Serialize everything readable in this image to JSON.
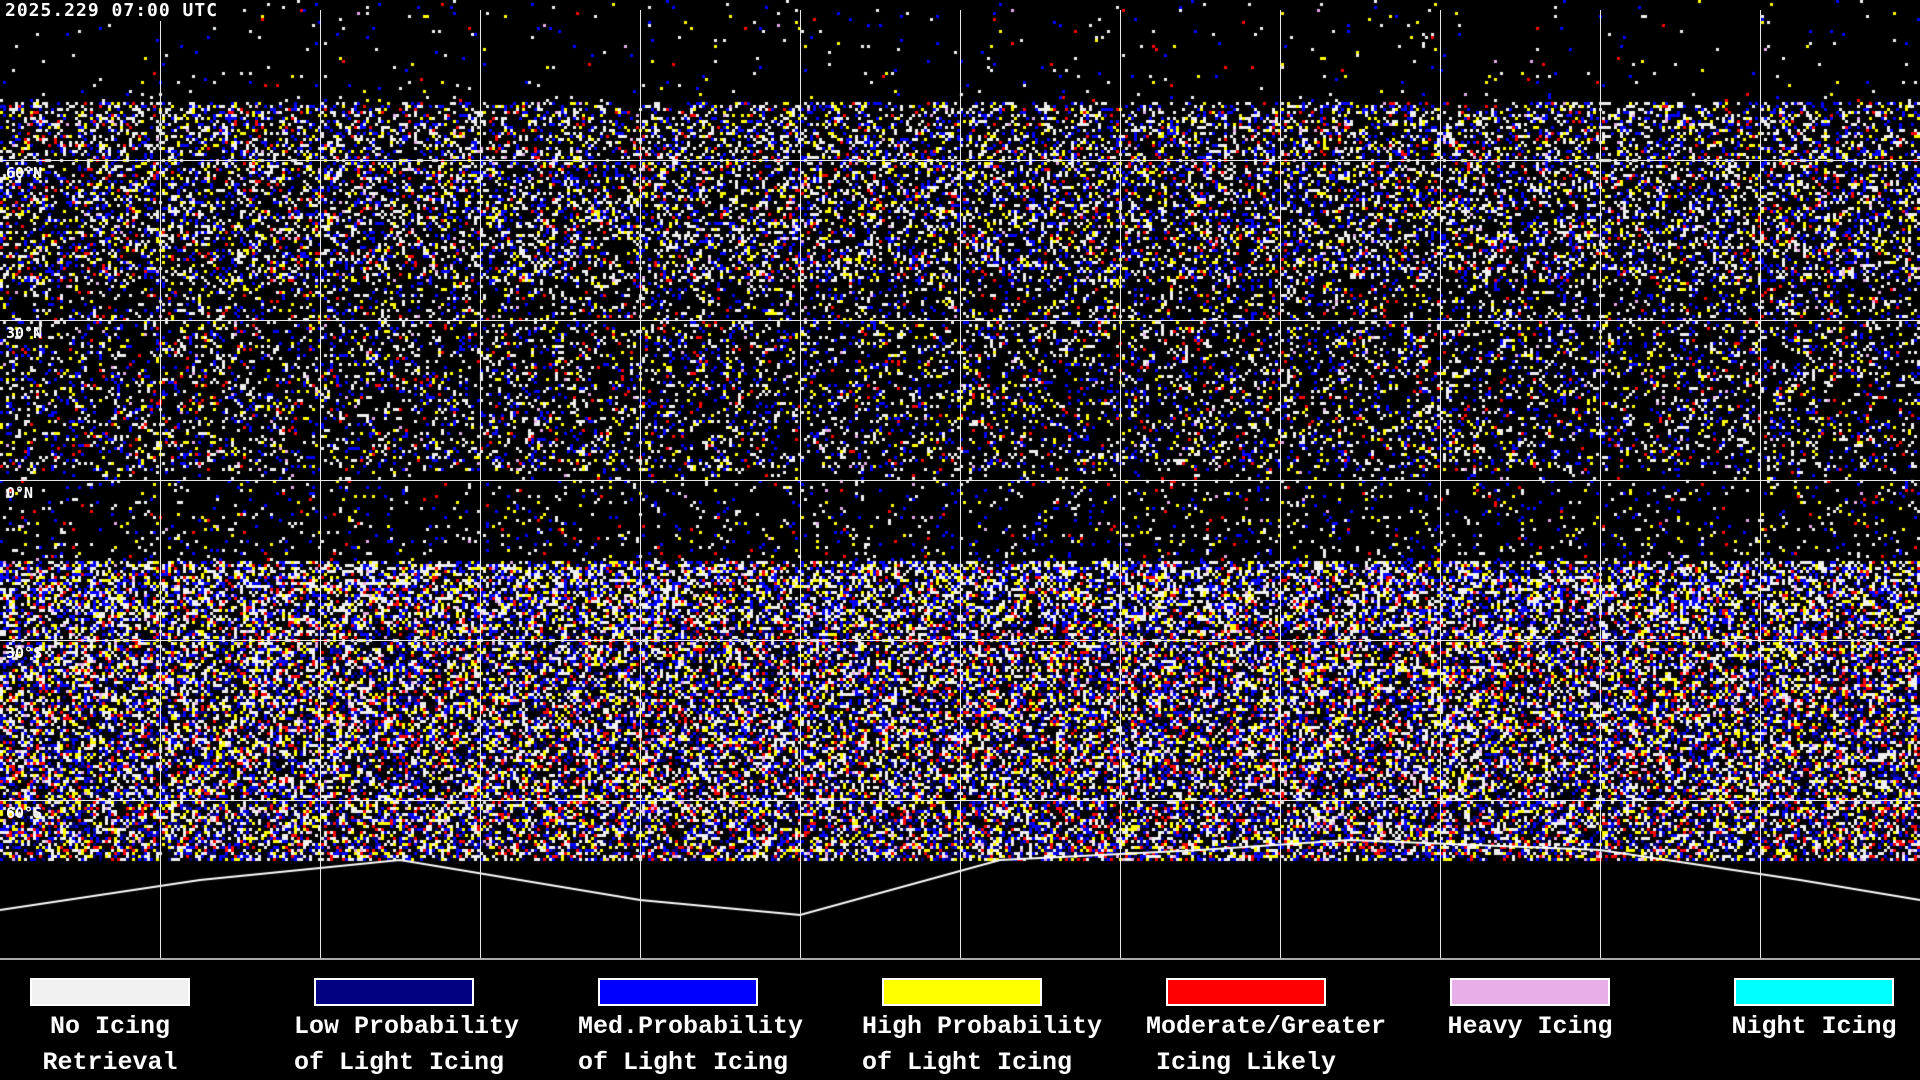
{
  "header": {
    "timestamp": "2025.229 07:00 UTC"
  },
  "map": {
    "latitude_labels": [
      "60°N",
      "30°N",
      "0°N",
      "30°S",
      "60°S"
    ],
    "gridlines": true,
    "background_color": "#000000",
    "coastline_color": "#ffffff"
  },
  "legend": {
    "items": [
      {
        "line1": "No Icing",
        "line2": "Retrieval",
        "color": "#f0f0f0"
      },
      {
        "line1": "Low Probability",
        "line2": "of Light Icing",
        "color": "#000080"
      },
      {
        "line1": "Med.Probability",
        "line2": "of Light Icing",
        "color": "#0000ff"
      },
      {
        "line1": "High Probability",
        "line2": "of Light Icing",
        "color": "#ffff00"
      },
      {
        "line1": "Moderate/Greater",
        "line2": "Icing Likely",
        "color": "#ff0000"
      },
      {
        "line1": "Heavy Icing",
        "line2": "",
        "color": "#e8aee8"
      },
      {
        "line1": "Night Icing",
        "line2": "",
        "color": "#00ffff"
      }
    ]
  }
}
